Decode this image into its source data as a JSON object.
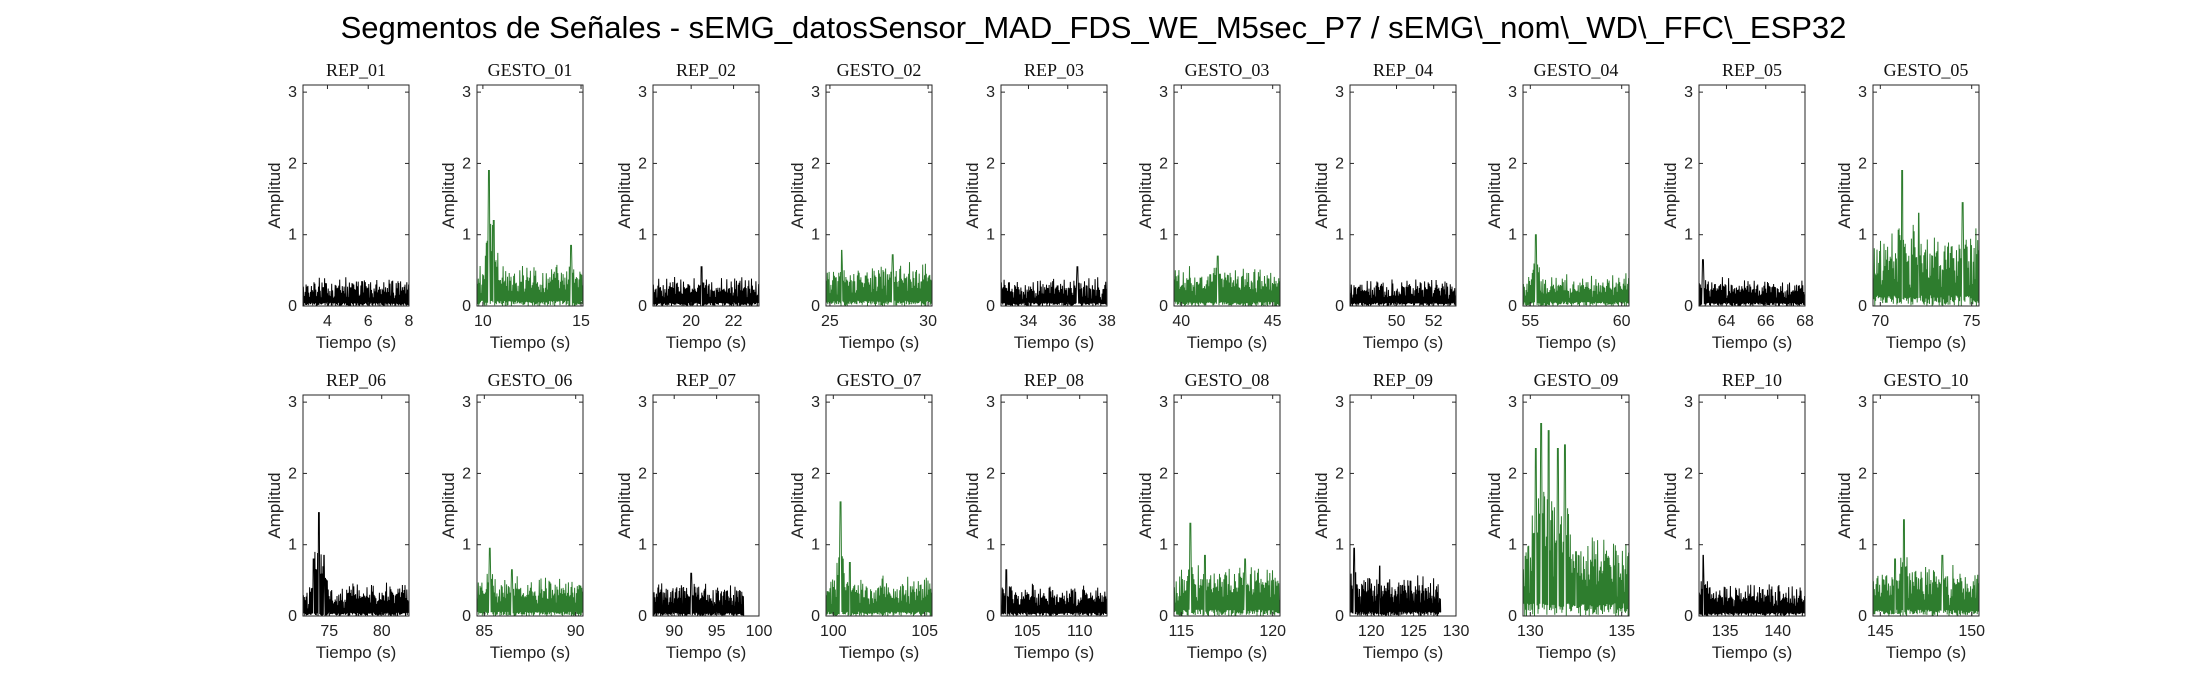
{
  "figure": {
    "title": "Segmentos de Señales - sEMG_datosSensor_MAD_FDS_WE_M5sec_P7 / sEMG\\_nom\\_WD\\_FFC\\_ESP32"
  },
  "colors": {
    "rep": "#000000",
    "gesto": "#2e7d2e",
    "axis": "#262626"
  },
  "chart_data": [
    {
      "type": "line",
      "title": "REP_01",
      "kind": "rep",
      "xlabel": "Tiempo (s)",
      "ylabel": "Amplitud",
      "xlim": [
        2.8,
        8
      ],
      "ylim": [
        0,
        3.1
      ],
      "xticks": [
        4,
        6,
        8
      ],
      "yticks": [
        0,
        1,
        2,
        3
      ],
      "t_start": 2.8,
      "t_end": 8,
      "baseline": 0.2,
      "noise": 0.15,
      "peaks": []
    },
    {
      "type": "line",
      "title": "GESTO_01",
      "kind": "gesto",
      "xlabel": "Tiempo (s)",
      "ylabel": "Amplitud",
      "xlim": [
        9.7,
        15.1
      ],
      "ylim": [
        0,
        3.1
      ],
      "xticks": [
        10,
        15
      ],
      "yticks": [
        0,
        1,
        2,
        3
      ],
      "t_start": 9.7,
      "t_end": 15.1,
      "baseline": 0.3,
      "noise": 0.25,
      "peaks": [
        [
          10.3,
          1.9
        ],
        [
          10.55,
          1.2
        ],
        [
          14.5,
          0.85
        ]
      ]
    },
    {
      "type": "line",
      "title": "REP_02",
      "kind": "rep",
      "xlabel": "Tiempo (s)",
      "ylabel": "Amplitud",
      "xlim": [
        18.2,
        23.2
      ],
      "ylim": [
        0,
        3.1
      ],
      "xticks": [
        20,
        22
      ],
      "yticks": [
        0,
        1,
        2,
        3
      ],
      "t_start": 18.2,
      "t_end": 23.2,
      "baseline": 0.2,
      "noise": 0.15,
      "peaks": [
        [
          20.5,
          0.55
        ]
      ]
    },
    {
      "type": "line",
      "title": "GESTO_02",
      "kind": "gesto",
      "xlabel": "Tiempo (s)",
      "ylabel": "Amplitud",
      "xlim": [
        24.8,
        30.2
      ],
      "ylim": [
        0,
        3.1
      ],
      "xticks": [
        25,
        30
      ],
      "yticks": [
        0,
        1,
        2,
        3
      ],
      "t_start": 24.8,
      "t_end": 30.2,
      "baseline": 0.3,
      "noise": 0.25,
      "peaks": [
        [
          25.6,
          0.78
        ],
        [
          28.2,
          0.72
        ]
      ]
    },
    {
      "type": "line",
      "title": "REP_03",
      "kind": "rep",
      "xlabel": "Tiempo (s)",
      "ylabel": "Amplitud",
      "xlim": [
        32.6,
        38
      ],
      "ylim": [
        0,
        3.1
      ],
      "xticks": [
        34,
        36,
        38
      ],
      "yticks": [
        0,
        1,
        2,
        3
      ],
      "t_start": 32.6,
      "t_end": 38,
      "baseline": 0.2,
      "noise": 0.15,
      "peaks": [
        [
          36.5,
          0.55
        ]
      ]
    },
    {
      "type": "line",
      "title": "GESTO_03",
      "kind": "gesto",
      "xlabel": "Tiempo (s)",
      "ylabel": "Amplitud",
      "xlim": [
        39.6,
        45.4
      ],
      "ylim": [
        0,
        3.1
      ],
      "xticks": [
        40,
        45
      ],
      "yticks": [
        0,
        1,
        2,
        3
      ],
      "t_start": 39.6,
      "t_end": 45.4,
      "baseline": 0.3,
      "noise": 0.2,
      "peaks": [
        [
          42,
          0.7
        ]
      ]
    },
    {
      "type": "line",
      "title": "REP_04",
      "kind": "rep",
      "xlabel": "Tiempo (s)",
      "ylabel": "Amplitud",
      "xlim": [
        47.5,
        53.2
      ],
      "ylim": [
        0,
        3.1
      ],
      "xticks": [
        50,
        52
      ],
      "yticks": [
        0,
        1,
        2,
        3
      ],
      "t_start": 47.5,
      "t_end": 53.2,
      "baseline": 0.2,
      "noise": 0.15,
      "peaks": []
    },
    {
      "type": "line",
      "title": "GESTO_04",
      "kind": "gesto",
      "xlabel": "Tiempo (s)",
      "ylabel": "Amplitud",
      "xlim": [
        54.6,
        60.4
      ],
      "ylim": [
        0,
        3.1
      ],
      "xticks": [
        55,
        60
      ],
      "yticks": [
        0,
        1,
        2,
        3
      ],
      "t_start": 54.6,
      "t_end": 60.4,
      "baseline": 0.2,
      "noise": 0.2,
      "peaks": [
        [
          55.3,
          1.0
        ]
      ]
    },
    {
      "type": "line",
      "title": "REP_05",
      "kind": "rep",
      "xlabel": "Tiempo (s)",
      "ylabel": "Amplitud",
      "xlim": [
        62.6,
        68
      ],
      "ylim": [
        0,
        3.1
      ],
      "xticks": [
        64,
        66,
        68
      ],
      "yticks": [
        0,
        1,
        2,
        3
      ],
      "t_start": 62.6,
      "t_end": 68,
      "baseline": 0.2,
      "noise": 0.15,
      "peaks": [
        [
          62.8,
          0.65
        ]
      ]
    },
    {
      "type": "line",
      "title": "GESTO_05",
      "kind": "gesto",
      "xlabel": "Tiempo (s)",
      "ylabel": "Amplitud",
      "xlim": [
        69.6,
        75.4
      ],
      "ylim": [
        0,
        3.1
      ],
      "xticks": [
        70,
        75
      ],
      "yticks": [
        0,
        1,
        2,
        3
      ],
      "t_start": 69.6,
      "t_end": 75.4,
      "baseline": 0.5,
      "noise": 0.5,
      "peaks": [
        [
          71.2,
          1.9
        ],
        [
          72.1,
          1.3
        ],
        [
          74.5,
          1.45
        ]
      ]
    },
    {
      "type": "line",
      "title": "REP_06",
      "kind": "rep",
      "xlabel": "Tiempo (s)",
      "ylabel": "Amplitud",
      "xlim": [
        72.5,
        82.6
      ],
      "ylim": [
        0,
        3.1
      ],
      "xticks": [
        75,
        80
      ],
      "yticks": [
        0,
        1,
        2,
        3
      ],
      "t_start": 72.5,
      "t_end": 82.6,
      "baseline": 0.25,
      "noise": 0.15,
      "peaks": [
        [
          73.5,
          0.8
        ],
        [
          74,
          1.45
        ],
        [
          74.5,
          0.85
        ]
      ]
    },
    {
      "type": "line",
      "title": "GESTO_06",
      "kind": "gesto",
      "xlabel": "Tiempo (s)",
      "ylabel": "Amplitud",
      "xlim": [
        84.6,
        90.4
      ],
      "ylim": [
        0,
        3.1
      ],
      "xticks": [
        85,
        90
      ],
      "yticks": [
        0,
        1,
        2,
        3
      ],
      "t_start": 84.6,
      "t_end": 90.4,
      "baseline": 0.3,
      "noise": 0.2,
      "peaks": [
        [
          85.3,
          0.95
        ],
        [
          86.5,
          0.65
        ]
      ]
    },
    {
      "type": "line",
      "title": "REP_07",
      "kind": "rep",
      "xlabel": "Tiempo (s)",
      "ylabel": "Amplitud",
      "xlim": [
        87.5,
        100
      ],
      "ylim": [
        0,
        3.1
      ],
      "xticks": [
        90,
        95,
        100
      ],
      "yticks": [
        0,
        1,
        2,
        3
      ],
      "t_start": 87.5,
      "t_end": 98.2,
      "baseline": 0.25,
      "noise": 0.15,
      "peaks": [
        [
          92,
          0.6
        ]
      ]
    },
    {
      "type": "line",
      "title": "GESTO_07",
      "kind": "gesto",
      "xlabel": "Tiempo (s)",
      "ylabel": "Amplitud",
      "xlim": [
        99.6,
        105.4
      ],
      "ylim": [
        0,
        3.1
      ],
      "xticks": [
        100,
        105
      ],
      "yticks": [
        0,
        1,
        2,
        3
      ],
      "t_start": 99.6,
      "t_end": 105.4,
      "baseline": 0.3,
      "noise": 0.2,
      "peaks": [
        [
          100.4,
          1.6
        ],
        [
          100.9,
          0.75
        ]
      ]
    },
    {
      "type": "line",
      "title": "REP_08",
      "kind": "rep",
      "xlabel": "Tiempo (s)",
      "ylabel": "Amplitud",
      "xlim": [
        102.5,
        112.6
      ],
      "ylim": [
        0,
        3.1
      ],
      "xticks": [
        105,
        110
      ],
      "yticks": [
        0,
        1,
        2,
        3
      ],
      "t_start": 102.5,
      "t_end": 112.6,
      "baseline": 0.25,
      "noise": 0.15,
      "peaks": [
        [
          103,
          0.65
        ]
      ]
    },
    {
      "type": "line",
      "title": "GESTO_08",
      "kind": "gesto",
      "xlabel": "Tiempo (s)",
      "ylabel": "Amplitud",
      "xlim": [
        114.6,
        120.4
      ],
      "ylim": [
        0,
        3.1
      ],
      "xticks": [
        115,
        120
      ],
      "yticks": [
        0,
        1,
        2,
        3
      ],
      "t_start": 114.6,
      "t_end": 120.4,
      "baseline": 0.35,
      "noise": 0.3,
      "peaks": [
        [
          115.5,
          1.3
        ],
        [
          116.3,
          0.85
        ],
        [
          118.5,
          0.8
        ]
      ]
    },
    {
      "type": "line",
      "title": "REP_09",
      "kind": "rep",
      "xlabel": "Tiempo (s)",
      "ylabel": "Amplitud",
      "xlim": [
        117.5,
        130
      ],
      "ylim": [
        0,
        3.1
      ],
      "xticks": [
        120,
        125,
        130
      ],
      "yticks": [
        0,
        1,
        2,
        3
      ],
      "t_start": 117.5,
      "t_end": 128.2,
      "baseline": 0.3,
      "noise": 0.2,
      "peaks": [
        [
          118,
          0.95
        ],
        [
          121,
          0.7
        ]
      ]
    },
    {
      "type": "line",
      "title": "GESTO_09",
      "kind": "gesto",
      "xlabel": "Tiempo (s)",
      "ylabel": "Amplitud",
      "xlim": [
        129.6,
        135.4
      ],
      "ylim": [
        0,
        3.1
      ],
      "xticks": [
        130,
        135
      ],
      "yticks": [
        0,
        1,
        2,
        3
      ],
      "t_start": 129.6,
      "t_end": 135.4,
      "baseline": 0.5,
      "noise": 0.6,
      "peaks": [
        [
          130.3,
          2.35
        ],
        [
          130.6,
          2.7
        ],
        [
          131,
          2.6
        ],
        [
          131.5,
          2.35
        ],
        [
          131.9,
          2.4
        ],
        [
          132.5,
          0.9
        ]
      ]
    },
    {
      "type": "line",
      "title": "REP_10",
      "kind": "rep",
      "xlabel": "Tiempo (s)",
      "ylabel": "Amplitud",
      "xlim": [
        132.5,
        142.6
      ],
      "ylim": [
        0,
        3.1
      ],
      "xticks": [
        135,
        140
      ],
      "yticks": [
        0,
        1,
        2,
        3
      ],
      "t_start": 132.5,
      "t_end": 142.6,
      "baseline": 0.25,
      "noise": 0.15,
      "peaks": [
        [
          132.9,
          0.85
        ]
      ]
    },
    {
      "type": "line",
      "title": "GESTO_10",
      "kind": "gesto",
      "xlabel": "Tiempo (s)",
      "ylabel": "Amplitud",
      "xlim": [
        144.6,
        150.4
      ],
      "ylim": [
        0,
        3.1
      ],
      "xticks": [
        145,
        150
      ],
      "yticks": [
        0,
        1,
        2,
        3
      ],
      "t_start": 144.6,
      "t_end": 150.4,
      "baseline": 0.35,
      "noise": 0.3,
      "peaks": [
        [
          146.3,
          1.35
        ],
        [
          145.8,
          0.8
        ],
        [
          148.4,
          0.85
        ]
      ]
    }
  ]
}
